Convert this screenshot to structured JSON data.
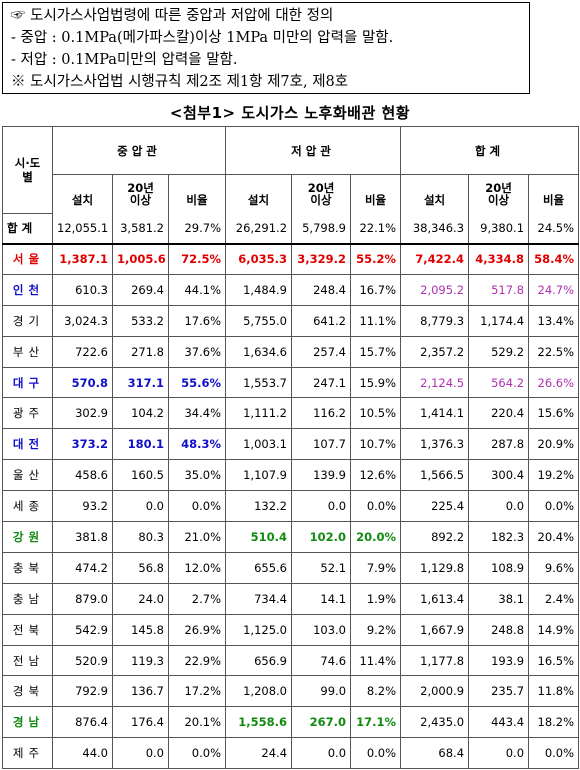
{
  "note": {
    "lines": [
      "☞ 도시가스사업법령에 따른 중압과 저압에 대한 정의",
      " - 중압 : 0.1MPa(메가파스칼)이상 1MPa 미만의 압력을 말함.",
      " - 저압 : 0.1MPa미만의 압력을 말함.",
      " ※ 도시가스사업법 시행규칙 제2조 제1항 제7호, 제8호"
    ]
  },
  "title": "<첨부1> 도시가스 노후화배관 현황",
  "table": {
    "corner_label": "시·도\n별",
    "groups": [
      "중압관",
      "저압관",
      "합계"
    ],
    "subheaders": [
      "설치",
      "20년\n이상",
      "비율",
      "설치",
      "20년\n이상",
      "비율",
      "설치",
      "20년\n이상",
      "비율"
    ],
    "total": {
      "label": "합계",
      "values": [
        "12,055.1",
        "3,581.2",
        "29.7%",
        "26,291.2",
        "5,798.9",
        "22.1%",
        "38,346.3",
        "9,380.1",
        "24.5%"
      ]
    },
    "rows": [
      {
        "region": "서울",
        "values": [
          "1,387.1",
          "1,005.6",
          "72.5%",
          "6,035.3",
          "3,329.2",
          "55.2%",
          "7,422.4",
          "4,334.8",
          "58.4%"
        ],
        "styles": [
          "red",
          "red",
          "red",
          "red",
          "red",
          "red",
          "red",
          "red",
          "red",
          "red"
        ]
      },
      {
        "region": "인천",
        "values": [
          "610.3",
          "269.4",
          "44.1%",
          "1,484.9",
          "248.4",
          "16.7%",
          "2,095.2",
          "517.8",
          "24.7%"
        ],
        "styles": [
          "blue",
          "",
          "",
          "",
          "",
          "",
          "",
          "purple",
          "purple",
          "purple"
        ]
      },
      {
        "region": "경기",
        "values": [
          "3,024.3",
          "533.2",
          "17.6%",
          "5,755.0",
          "641.2",
          "11.1%",
          "8,779.3",
          "1,174.4",
          "13.4%"
        ],
        "styles": [
          "",
          "",
          "",
          "",
          "",
          "",
          "",
          "",
          "",
          ""
        ]
      },
      {
        "region": "부산",
        "values": [
          "722.6",
          "271.8",
          "37.6%",
          "1,634.6",
          "257.4",
          "15.7%",
          "2,357.2",
          "529.2",
          "22.5%"
        ],
        "styles": [
          "",
          "",
          "",
          "",
          "",
          "",
          "",
          "",
          "",
          ""
        ]
      },
      {
        "region": "대구",
        "values": [
          "570.8",
          "317.1",
          "55.6%",
          "1,553.7",
          "247.1",
          "15.9%",
          "2,124.5",
          "564.2",
          "26.6%"
        ],
        "styles": [
          "blue",
          "blue",
          "blue",
          "blue",
          "",
          "",
          "",
          "purple",
          "purple",
          "purple"
        ]
      },
      {
        "region": "광주",
        "values": [
          "302.9",
          "104.2",
          "34.4%",
          "1,111.2",
          "116.2",
          "10.5%",
          "1,414.1",
          "220.4",
          "15.6%"
        ],
        "styles": [
          "",
          "",
          "",
          "",
          "",
          "",
          "",
          "",
          "",
          ""
        ]
      },
      {
        "region": "대전",
        "values": [
          "373.2",
          "180.1",
          "48.3%",
          "1,003.1",
          "107.7",
          "10.7%",
          "1,376.3",
          "287.8",
          "20.9%"
        ],
        "styles": [
          "blue",
          "blue",
          "blue",
          "blue",
          "",
          "",
          "",
          "",
          "",
          ""
        ]
      },
      {
        "region": "울산",
        "values": [
          "458.6",
          "160.5",
          "35.0%",
          "1,107.9",
          "139.9",
          "12.6%",
          "1,566.5",
          "300.4",
          "19.2%"
        ],
        "styles": [
          "",
          "",
          "",
          "",
          "",
          "",
          "",
          "",
          "",
          ""
        ]
      },
      {
        "region": "세종",
        "values": [
          "93.2",
          "0.0",
          "0.0%",
          "132.2",
          "0.0",
          "0.0%",
          "225.4",
          "0.0",
          "0.0%"
        ],
        "styles": [
          "",
          "",
          "",
          "",
          "",
          "",
          "",
          "",
          "",
          ""
        ]
      },
      {
        "region": "강원",
        "values": [
          "381.8",
          "80.3",
          "21.0%",
          "510.4",
          "102.0",
          "20.0%",
          "892.2",
          "182.3",
          "20.4%"
        ],
        "styles": [
          "green",
          "",
          "",
          "",
          "green",
          "green",
          "green",
          "",
          "",
          ""
        ]
      },
      {
        "region": "충북",
        "values": [
          "474.2",
          "56.8",
          "12.0%",
          "655.6",
          "52.1",
          "7.9%",
          "1,129.8",
          "108.9",
          "9.6%"
        ],
        "styles": [
          "",
          "",
          "",
          "",
          "",
          "",
          "",
          "",
          "",
          ""
        ]
      },
      {
        "region": "충남",
        "values": [
          "879.0",
          "24.0",
          "2.7%",
          "734.4",
          "14.1",
          "1.9%",
          "1,613.4",
          "38.1",
          "2.4%"
        ],
        "styles": [
          "",
          "",
          "",
          "",
          "",
          "",
          "",
          "",
          "",
          ""
        ]
      },
      {
        "region": "전북",
        "values": [
          "542.9",
          "145.8",
          "26.9%",
          "1,125.0",
          "103.0",
          "9.2%",
          "1,667.9",
          "248.8",
          "14.9%"
        ],
        "styles": [
          "",
          "",
          "",
          "",
          "",
          "",
          "",
          "",
          "",
          ""
        ]
      },
      {
        "region": "전남",
        "values": [
          "520.9",
          "119.3",
          "22.9%",
          "656.9",
          "74.6",
          "11.4%",
          "1,177.8",
          "193.9",
          "16.5%"
        ],
        "styles": [
          "",
          "",
          "",
          "",
          "",
          "",
          "",
          "",
          "",
          ""
        ]
      },
      {
        "region": "경북",
        "values": [
          "792.9",
          "136.7",
          "17.2%",
          "1,208.0",
          "99.0",
          "8.2%",
          "2,000.9",
          "235.7",
          "11.8%"
        ],
        "styles": [
          "",
          "",
          "",
          "",
          "",
          "",
          "",
          "",
          "",
          ""
        ]
      },
      {
        "region": "경남",
        "values": [
          "876.4",
          "176.4",
          "20.1%",
          "1,558.6",
          "267.0",
          "17.1%",
          "2,435.0",
          "443.4",
          "18.2%"
        ],
        "styles": [
          "green",
          "",
          "",
          "",
          "green",
          "green",
          "green",
          "",
          "",
          ""
        ]
      },
      {
        "region": "제주",
        "values": [
          "44.0",
          "0.0",
          "0.0%",
          "24.4",
          "0.0",
          "0.0%",
          "68.4",
          "0.0",
          "0.0%"
        ],
        "styles": [
          "",
          "",
          "",
          "",
          "",
          "",
          "",
          "",
          "",
          ""
        ]
      }
    ]
  }
}
